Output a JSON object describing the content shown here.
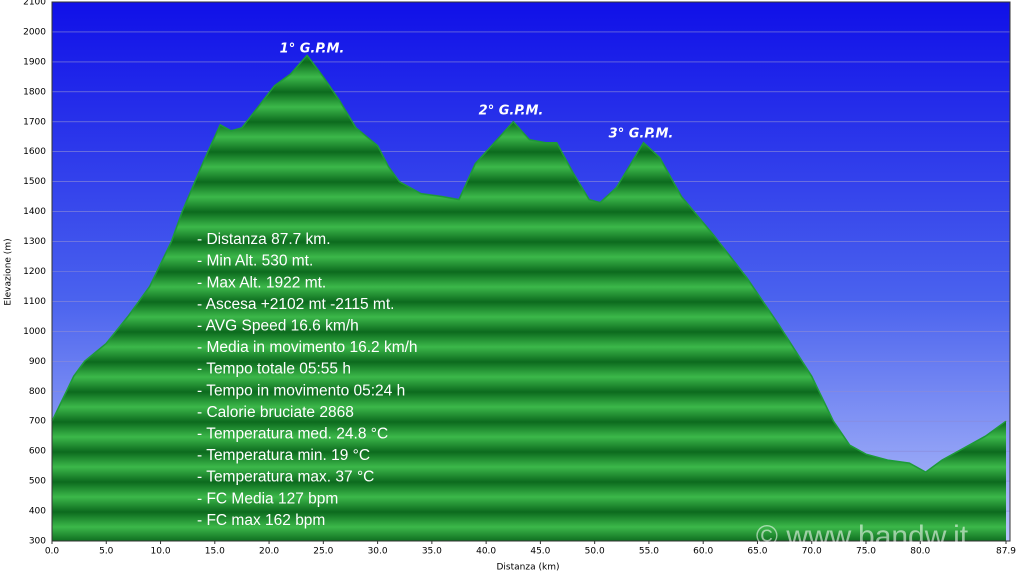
{
  "chart_data": {
    "type": "area",
    "x": [
      0,
      2,
      3,
      5,
      7,
      9,
      11,
      12,
      14,
      15.5,
      16.5,
      17.5,
      19,
      20.5,
      22,
      23.5,
      25,
      26.5,
      28,
      30,
      31,
      32,
      34,
      36,
      37.5,
      39,
      40.5,
      42.5,
      44,
      45.5,
      46.5,
      48,
      49.5,
      50.5,
      52,
      54.5,
      56,
      58,
      61,
      64,
      67,
      70,
      72,
      73.5,
      75,
      77,
      79,
      80.5,
      82,
      84,
      86,
      87.9
    ],
    "values": [
      700,
      850,
      900,
      960,
      1050,
      1150,
      1300,
      1400,
      1570,
      1690,
      1670,
      1680,
      1750,
      1820,
      1860,
      1922,
      1850,
      1770,
      1680,
      1620,
      1550,
      1500,
      1460,
      1450,
      1440,
      1560,
      1620,
      1700,
      1640,
      1630,
      1630,
      1530,
      1440,
      1430,
      1480,
      1630,
      1580,
      1450,
      1320,
      1180,
      1020,
      850,
      700,
      620,
      590,
      570,
      560,
      530,
      570,
      610,
      650,
      700
    ],
    "color": "#1e9a38",
    "xlabel": "Distanza  (km)",
    "ylabel": "Elevazione (m)",
    "xlim": [
      0,
      87.9
    ],
    "ylim": [
      300,
      2100
    ],
    "xticks": [
      {
        "value": 0,
        "label": "0.0"
      },
      {
        "value": 5,
        "label": "5.0"
      },
      {
        "value": 10,
        "label": "10.0"
      },
      {
        "value": 15,
        "label": "15.0"
      },
      {
        "value": 20,
        "label": "20.0"
      },
      {
        "value": 25,
        "label": "25.0"
      },
      {
        "value": 30,
        "label": "30.0"
      },
      {
        "value": 35,
        "label": "35.0"
      },
      {
        "value": 40,
        "label": "40.0"
      },
      {
        "value": 45,
        "label": "45.0"
      },
      {
        "value": 50,
        "label": "50.0"
      },
      {
        "value": 55,
        "label": "55.0"
      },
      {
        "value": 60,
        "label": "60.0"
      },
      {
        "value": 65,
        "label": "65.0"
      },
      {
        "value": 70,
        "label": "70.0"
      },
      {
        "value": 75,
        "label": "75.0"
      },
      {
        "value": 80,
        "label": "80.0"
      },
      87.9
    ],
    "yticks": [
      300,
      400,
      500,
      600,
      700,
      800,
      900,
      1000,
      1100,
      1200,
      1300,
      1400,
      1500,
      1600,
      1700,
      1800,
      1900,
      2000,
      2100
    ],
    "grid": true,
    "annotations": [
      "1° G.P.M.",
      "2° G.P.M.",
      "3° G.P.M."
    ],
    "stats": [
      "- Distanza 87.7 km.",
      "- Min Alt. 530 mt.",
      "- Max Alt. 1922 mt.",
      "- Ascesa +2102 mt -2115 mt.",
      "- AVG Speed 16.6 km/h",
      "- Media in movimento 16.2 km/h",
      "- Tempo totale 05:55 h",
      "- Tempo in movimento 05:24 h",
      "- Calorie bruciate 2868",
      "- Temperatura med. 24.8 °C",
      "- Temperatura min. 19 °C",
      "- Temperatura max. 37 °C",
      "- FC Media 127 bpm",
      "- FC max 162 bpm"
    ],
    "watermark": "© www.bandw.it"
  }
}
